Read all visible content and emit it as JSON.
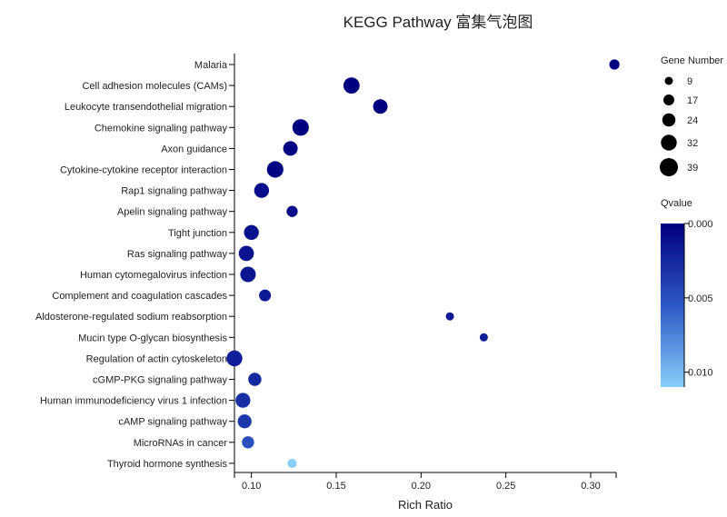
{
  "chart_data": {
    "type": "scatter",
    "title": "KEGG Pathway 富集气泡图",
    "xlabel": "Rich Ratio",
    "ylabel": "",
    "xlim": [
      0.09,
      0.315
    ],
    "x_ticks": [
      "0.10",
      "0.15",
      "0.20",
      "0.25",
      "0.30"
    ],
    "x_tick_values": [
      0.1,
      0.15,
      0.2,
      0.25,
      0.3
    ],
    "categories": [
      "Malaria",
      "Cell adhesion molecules (CAMs)",
      "Leukocyte transendothelial migration",
      "Chemokine signaling pathway",
      "Axon guidance",
      "Cytokine-cytokine receptor interaction",
      "Rap1 signaling pathway",
      "Apelin signaling pathway",
      "Tight junction",
      "Ras signaling pathway",
      "Human cytomegalovirus infection",
      "Complement and coagulation cascades",
      "Aldosterone-regulated sodium reabsorption",
      "Mucin type O-glycan biosynthesis",
      "Regulation of actin cytoskeleton",
      "cGMP-PKG signaling pathway",
      "Human immunodeficiency virus 1 infection",
      "cAMP signaling pathway",
      "MicroRNAs in cancer",
      "Thyroid hormone synthesis"
    ],
    "points": [
      {
        "pathway": "Malaria",
        "rich_ratio": 0.314,
        "gene_number": 15,
        "qvalue": 0.0
      },
      {
        "pathway": "Cell adhesion molecules (CAMs)",
        "rich_ratio": 0.159,
        "gene_number": 33,
        "qvalue": 0.0
      },
      {
        "pathway": "Leukocyte transendothelial migration",
        "rich_ratio": 0.176,
        "gene_number": 28,
        "qvalue": 0.0
      },
      {
        "pathway": "Chemokine signaling pathway",
        "rich_ratio": 0.129,
        "gene_number": 34,
        "qvalue": 0.0
      },
      {
        "pathway": "Axon guidance",
        "rich_ratio": 0.123,
        "gene_number": 28,
        "qvalue": 0.0002
      },
      {
        "pathway": "Cytokine-cytokine receptor interaction",
        "rich_ratio": 0.114,
        "gene_number": 34,
        "qvalue": 0.0002
      },
      {
        "pathway": "Rap1 signaling pathway",
        "rich_ratio": 0.106,
        "gene_number": 29,
        "qvalue": 0.0008
      },
      {
        "pathway": "Apelin signaling pathway",
        "rich_ratio": 0.124,
        "gene_number": 18,
        "qvalue": 0.0008
      },
      {
        "pathway": "Tight junction",
        "rich_ratio": 0.1,
        "gene_number": 29,
        "qvalue": 0.001
      },
      {
        "pathway": "Ras signaling pathway",
        "rich_ratio": 0.097,
        "gene_number": 30,
        "qvalue": 0.0012
      },
      {
        "pathway": "Human cytomegalovirus infection",
        "rich_ratio": 0.098,
        "gene_number": 31,
        "qvalue": 0.0014
      },
      {
        "pathway": "Complement and coagulation cascades",
        "rich_ratio": 0.108,
        "gene_number": 20,
        "qvalue": 0.0016
      },
      {
        "pathway": "Aldosterone-regulated sodium reabsorption",
        "rich_ratio": 0.217,
        "gene_number": 9,
        "qvalue": 0.0016
      },
      {
        "pathway": "Mucin type O-glycan biosynthesis",
        "rich_ratio": 0.237,
        "gene_number": 9,
        "qvalue": 0.0018
      },
      {
        "pathway": "Regulation of actin cytoskeleton",
        "rich_ratio": 0.09,
        "gene_number": 32,
        "qvalue": 0.002
      },
      {
        "pathway": "cGMP-PKG signaling pathway",
        "rich_ratio": 0.102,
        "gene_number": 24,
        "qvalue": 0.0025
      },
      {
        "pathway": "Human immunodeficiency virus 1 infection",
        "rich_ratio": 0.095,
        "gene_number": 29,
        "qvalue": 0.003
      },
      {
        "pathway": "cAMP signaling pathway",
        "rich_ratio": 0.096,
        "gene_number": 26,
        "qvalue": 0.0035
      },
      {
        "pathway": "MicroRNAs in cancer",
        "rich_ratio": 0.098,
        "gene_number": 21,
        "qvalue": 0.005
      },
      {
        "pathway": "Thyroid hormone synthesis",
        "rich_ratio": 0.124,
        "gene_number": 12,
        "qvalue": 0.011
      }
    ],
    "size_legend": {
      "title": "Gene Number",
      "values": [
        9,
        17,
        24,
        32,
        39
      ],
      "labels": [
        "9",
        "17",
        "24",
        "32",
        "39"
      ]
    },
    "color_legend": {
      "title": "Qvalue",
      "range": [
        0.0,
        0.011
      ],
      "tick_values": [
        0.0,
        0.005,
        0.01
      ],
      "tick_labels": [
        "0.000",
        "0.005",
        "0.010"
      ],
      "color_low": "#000080",
      "color_mid": "#2e58c4",
      "color_high": "#87cefa"
    },
    "grid": false,
    "legend_position": "right"
  }
}
